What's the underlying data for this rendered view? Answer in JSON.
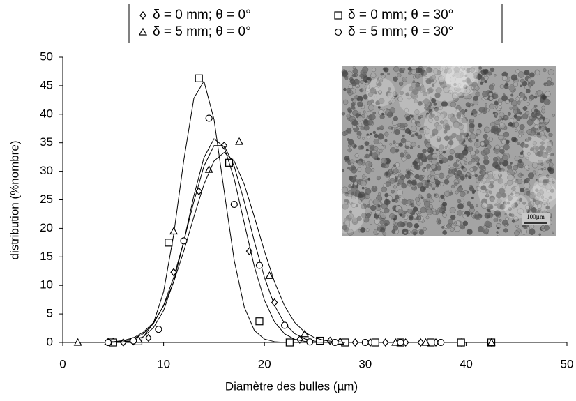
{
  "chart_data": {
    "type": "scatter",
    "xlabel": "Diamètre des bulles (µm)",
    "ylabel": "distribution (%nombre)",
    "xlim": [
      0,
      50
    ],
    "xticks": [
      0,
      10,
      20,
      30,
      40,
      50
    ],
    "ylim": [
      0,
      50
    ],
    "yticks": [
      0,
      5,
      10,
      15,
      20,
      25,
      30,
      35,
      40,
      45,
      50
    ],
    "grid": false,
    "legend": "top",
    "inset_scale_label": "100µm",
    "fit_x": [
      4,
      5,
      6,
      7,
      8,
      9,
      10,
      11,
      12,
      13,
      14,
      15,
      16,
      17,
      18,
      19,
      20,
      21,
      22,
      23,
      24,
      25,
      26,
      27,
      28
    ],
    "series": [
      {
        "name": "δ = 0 mm; θ = 0°",
        "marker": "diamond",
        "color": "#000000",
        "x": [
          5,
          6,
          7,
          8.5,
          11,
          13.5,
          16,
          18.5,
          21,
          23.5,
          26.5,
          29,
          30.5,
          32,
          34,
          35.5,
          37,
          39.5,
          42.5
        ],
        "values": [
          0.1,
          0,
          0.2,
          0.8,
          12.3,
          26.5,
          34.5,
          16,
          7,
          0.5,
          0.3,
          0,
          0,
          0,
          0,
          0,
          0,
          0,
          0
        ],
        "fit": [
          0.02,
          0.08,
          0.23,
          0.63,
          1.54,
          3.3,
          6.5,
          11.4,
          17.7,
          24.7,
          30.9,
          34.5,
          34.5,
          30.9,
          24.7,
          17.7,
          11.4,
          6.5,
          3.3,
          1.54,
          0.63,
          0.23,
          0.08,
          0.02,
          0.01
        ]
      },
      {
        "name": "δ = 0 mm; θ = 30°",
        "marker": "square",
        "color": "#000000",
        "x": [
          5,
          7.5,
          10.5,
          13.5,
          16.5,
          19.5,
          22.5,
          25.5,
          28,
          31,
          33.5,
          36.5,
          39.5,
          42.5
        ],
        "values": [
          0,
          0.2,
          17.5,
          46.3,
          31.5,
          3.7,
          0,
          0.3,
          0,
          0,
          0,
          0,
          0,
          0
        ],
        "fit": [
          0,
          0.01,
          0.05,
          0.24,
          1.0,
          3.4,
          8.9,
          18.9,
          31.9,
          42.8,
          45.8,
          39.1,
          26.6,
          14.4,
          6.2,
          2.1,
          0.59,
          0.13,
          0.02,
          0,
          0,
          0,
          0,
          0,
          0
        ]
      },
      {
        "name": "δ = 5 mm; θ = 0°",
        "marker": "triangle",
        "color": "#000000",
        "x": [
          1.5,
          4.5,
          7.5,
          11,
          14.5,
          17.5,
          20.5,
          24,
          27.5,
          33,
          36,
          42.5
        ],
        "values": [
          0,
          0.1,
          0.5,
          19.5,
          30.3,
          35.2,
          11.7,
          1.5,
          0.2,
          0,
          0,
          0
        ],
        "fit": [
          0.01,
          0.03,
          0.11,
          0.36,
          1.0,
          2.6,
          5.6,
          10.7,
          17.7,
          25.7,
          32.4,
          35.7,
          34.3,
          28.7,
          20.9,
          13.3,
          7.4,
          3.6,
          1.5,
          0.55,
          0.18,
          0.05,
          0.01,
          0,
          0
        ]
      },
      {
        "name": "δ = 5 mm; θ = 30°",
        "marker": "circle",
        "color": "#000000",
        "x": [
          4.5,
          7,
          9.5,
          12,
          14.5,
          17,
          19.5,
          22,
          24.5,
          27,
          30,
          33.5,
          37.5
        ],
        "values": [
          0,
          0.3,
          2.3,
          17.8,
          39.3,
          24.2,
          13.5,
          3,
          0.1,
          0,
          0,
          0,
          0
        ],
        "fit": [
          0.04,
          0.13,
          0.34,
          0.81,
          1.8,
          3.5,
          6.4,
          10.6,
          16.0,
          22.0,
          27.7,
          31.8,
          33.3,
          31.8,
          27.7,
          22.0,
          16.0,
          10.6,
          6.4,
          3.5,
          1.8,
          0.81,
          0.34,
          0.13,
          0.04
        ]
      }
    ]
  }
}
